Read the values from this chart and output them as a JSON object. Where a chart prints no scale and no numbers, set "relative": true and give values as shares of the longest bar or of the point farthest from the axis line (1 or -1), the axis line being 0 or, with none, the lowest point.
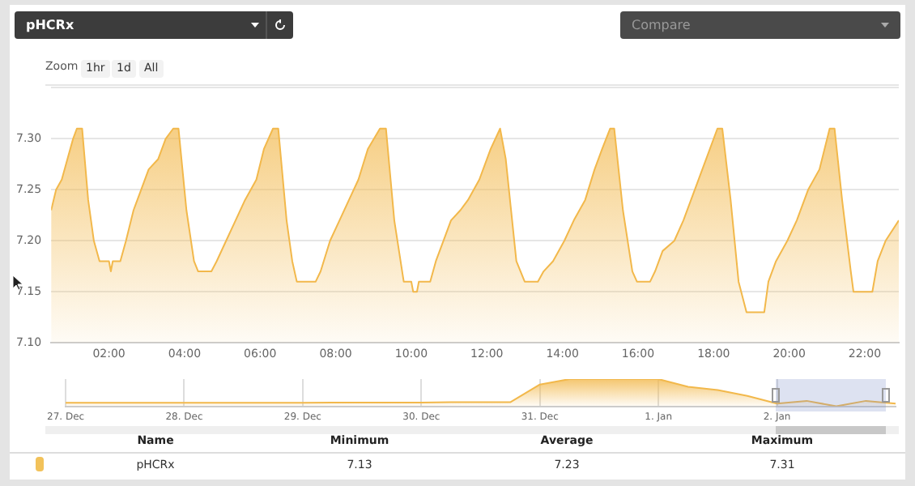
{
  "chart_data": [
    {
      "type": "area",
      "color": "#f2b84b",
      "marker": "none",
      "grid": "y",
      "legend": false,
      "x": [
        0.47,
        0.6,
        0.75,
        0.9,
        1.05,
        1.15,
        1.29,
        1.45,
        1.6,
        1.75,
        2.0,
        2.05,
        2.1,
        2.3,
        2.45,
        2.65,
        2.85,
        3.05,
        3.3,
        3.5,
        3.7,
        3.84,
        4.05,
        4.25,
        4.36,
        4.71,
        4.85,
        5.1,
        5.35,
        5.6,
        5.9,
        6.1,
        6.34,
        6.48,
        6.7,
        6.85,
        6.97,
        7.47,
        7.6,
        7.85,
        8.1,
        8.35,
        8.6,
        8.85,
        9.17,
        9.33,
        9.55,
        9.8,
        10.0,
        10.05,
        10.15,
        10.2,
        10.5,
        10.65,
        10.85,
        11.05,
        11.3,
        11.5,
        11.8,
        12.1,
        12.35,
        12.5,
        12.78,
        13.0,
        13.35,
        13.5,
        13.75,
        14.05,
        14.3,
        14.6,
        14.85,
        15.05,
        15.26,
        15.37,
        15.6,
        15.85,
        15.97,
        16.32,
        16.45,
        16.65,
        16.96,
        17.2,
        17.5,
        17.8,
        18.1,
        18.23,
        18.45,
        18.66,
        18.87,
        19.34,
        19.45,
        19.65,
        19.95,
        20.2,
        20.5,
        20.8,
        21.07,
        21.2,
        21.4,
        21.63,
        21.7,
        22.2,
        22.34,
        22.55,
        22.9
      ],
      "values": [
        7.23,
        7.25,
        7.26,
        7.28,
        7.3,
        7.31,
        7.31,
        7.24,
        7.2,
        7.18,
        7.18,
        7.17,
        7.18,
        7.18,
        7.2,
        7.23,
        7.25,
        7.27,
        7.28,
        7.3,
        7.31,
        7.31,
        7.23,
        7.18,
        7.17,
        7.17,
        7.18,
        7.2,
        7.22,
        7.24,
        7.26,
        7.29,
        7.31,
        7.31,
        7.22,
        7.18,
        7.16,
        7.16,
        7.17,
        7.2,
        7.22,
        7.24,
        7.26,
        7.29,
        7.31,
        7.31,
        7.22,
        7.16,
        7.16,
        7.15,
        7.15,
        7.16,
        7.16,
        7.18,
        7.2,
        7.22,
        7.23,
        7.24,
        7.26,
        7.29,
        7.31,
        7.28,
        7.18,
        7.16,
        7.16,
        7.17,
        7.18,
        7.2,
        7.22,
        7.24,
        7.27,
        7.29,
        7.31,
        7.31,
        7.23,
        7.17,
        7.16,
        7.16,
        7.17,
        7.19,
        7.2,
        7.22,
        7.25,
        7.28,
        7.31,
        7.31,
        7.24,
        7.16,
        7.13,
        7.13,
        7.16,
        7.18,
        7.2,
        7.22,
        7.25,
        7.27,
        7.31,
        7.31,
        7.24,
        7.17,
        7.15,
        7.15,
        7.18,
        7.2,
        7.22
      ],
      "xlim": [
        0.47,
        22.9
      ],
      "xticks": [
        {
          "value": 2,
          "label": "02:00"
        },
        {
          "value": 4,
          "label": "04:00"
        },
        {
          "value": 6,
          "label": "06:00"
        },
        {
          "value": 8,
          "label": "08:00"
        },
        {
          "value": 10,
          "label": "10:00"
        },
        {
          "value": 12,
          "label": "12:00"
        },
        {
          "value": 14,
          "label": "14:00"
        },
        {
          "value": 16,
          "label": "16:00"
        },
        {
          "value": 18,
          "label": "18:00"
        },
        {
          "value": 20,
          "label": "20:00"
        },
        {
          "value": 22,
          "label": "22:00"
        }
      ],
      "ylim": [
        7.1,
        7.35
      ],
      "yticks": [
        {
          "value": 7.1,
          "label": "7.10"
        },
        {
          "value": 7.15,
          "label": "7.15"
        },
        {
          "value": 7.2,
          "label": "7.20"
        },
        {
          "value": 7.25,
          "label": "7.25"
        },
        {
          "value": 7.3,
          "label": "7.30"
        },
        {
          "value": 7.35,
          "label": null
        }
      ],
      "annotations": [
        "pHCRx",
        "Compare",
        "Zoom",
        "1hr",
        "1d",
        "All",
        "Name",
        "Minimum",
        "Average",
        "Maximum",
        "pHCRx",
        "7.13",
        "7.23",
        "7.31"
      ]
    },
    {
      "type": "area",
      "color": "#f2b84b",
      "relative": true,
      "marker": "none",
      "grid": "x",
      "legend": false,
      "categories": [
        "27. Dec",
        null,
        null,
        null,
        "28. Dec",
        null,
        null,
        null,
        "29. Dec",
        null,
        null,
        null,
        "30. Dec",
        null,
        null,
        null,
        "31. Dec",
        null,
        null,
        null,
        "1. Jan",
        null,
        null,
        null,
        "2. Jan",
        null,
        null,
        null,
        null
      ],
      "values": [
        0.13,
        0.13,
        0.13,
        0.13,
        0.13,
        0.13,
        0.13,
        0.13,
        0.13,
        0.14,
        0.14,
        0.14,
        0.14,
        0.15,
        0.15,
        0.15,
        0.8,
        1,
        1,
        1,
        1,
        0.72,
        0.6,
        0.38,
        0.1,
        0.2,
        0,
        0.2,
        0.1
      ]
    }
  ]
}
